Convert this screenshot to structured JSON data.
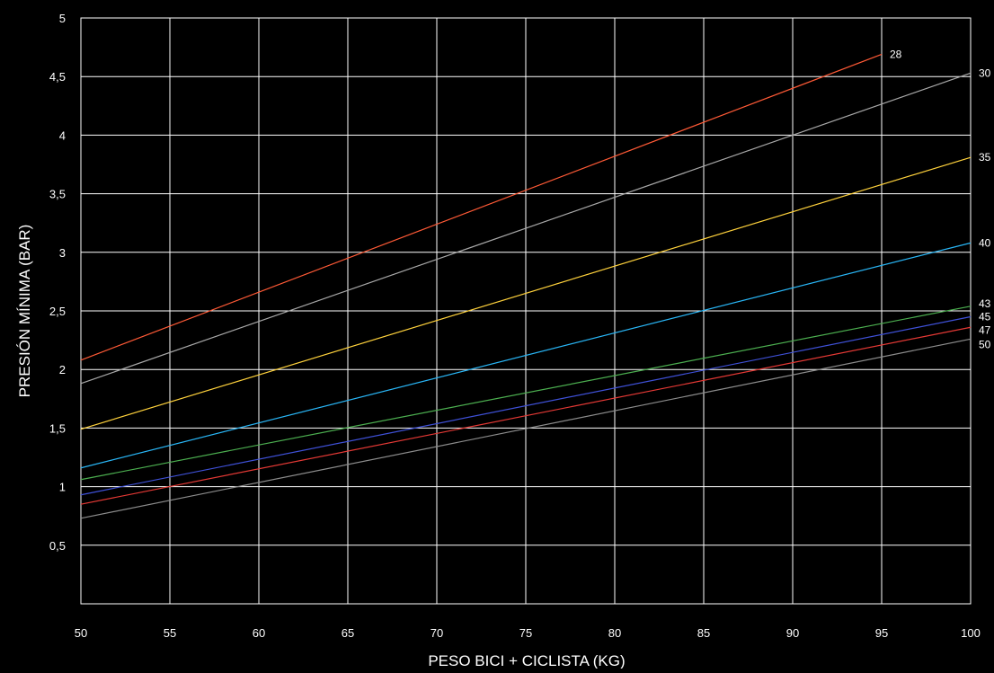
{
  "colors": {
    "background": "#000000",
    "grid": "#ffffff",
    "text": "#ffffff"
  },
  "chart_data": {
    "type": "line",
    "title": "",
    "xlabel": "PESO BICI + CICLISTA (KG)",
    "ylabel": "PRESIÓN MÍNIMA (BAR)",
    "xlim": [
      50,
      100
    ],
    "ylim": [
      0,
      5
    ],
    "grid": true,
    "legend": "inline labels at line ends",
    "x_ticks": [
      50,
      55,
      60,
      65,
      70,
      75,
      80,
      85,
      90,
      95,
      100
    ],
    "x_tick_labels": [
      "50",
      "55",
      "60",
      "65",
      "70",
      "75",
      "80",
      "85",
      "90",
      "95",
      "100"
    ],
    "y_ticks": [
      0.5,
      1,
      1.5,
      2,
      2.5,
      3,
      3.5,
      4,
      4.5,
      5
    ],
    "y_tick_labels": [
      "0,5",
      "1",
      "1,5",
      "2",
      "2,5",
      "3",
      "3,5",
      "4",
      "4,5",
      "5"
    ],
    "series": [
      {
        "name": "28",
        "color": "#ff5a36",
        "x": [
          50,
          95
        ],
        "values": [
          2.08,
          4.69
        ]
      },
      {
        "name": "30",
        "color": "#a8a8a8",
        "x": [
          50,
          100
        ],
        "values": [
          1.88,
          4.53
        ]
      },
      {
        "name": "35",
        "color": "#ffd23c",
        "x": [
          50,
          100
        ],
        "values": [
          1.49,
          3.81
        ]
      },
      {
        "name": "40",
        "color": "#29b6f6",
        "x": [
          50,
          100
        ],
        "values": [
          1.16,
          3.08
        ]
      },
      {
        "name": "43",
        "color": "#4caf50",
        "x": [
          50,
          100
        ],
        "values": [
          1.06,
          2.54
        ]
      },
      {
        "name": "45",
        "color": "#3f51d8",
        "x": [
          50,
          100
        ],
        "values": [
          0.93,
          2.45
        ]
      },
      {
        "name": "47",
        "color": "#e53935",
        "x": [
          50,
          100
        ],
        "values": [
          0.85,
          2.36
        ]
      },
      {
        "name": "50",
        "color": "#8c8c8c",
        "x": [
          50,
          100
        ],
        "values": [
          0.73,
          2.26
        ]
      }
    ]
  }
}
